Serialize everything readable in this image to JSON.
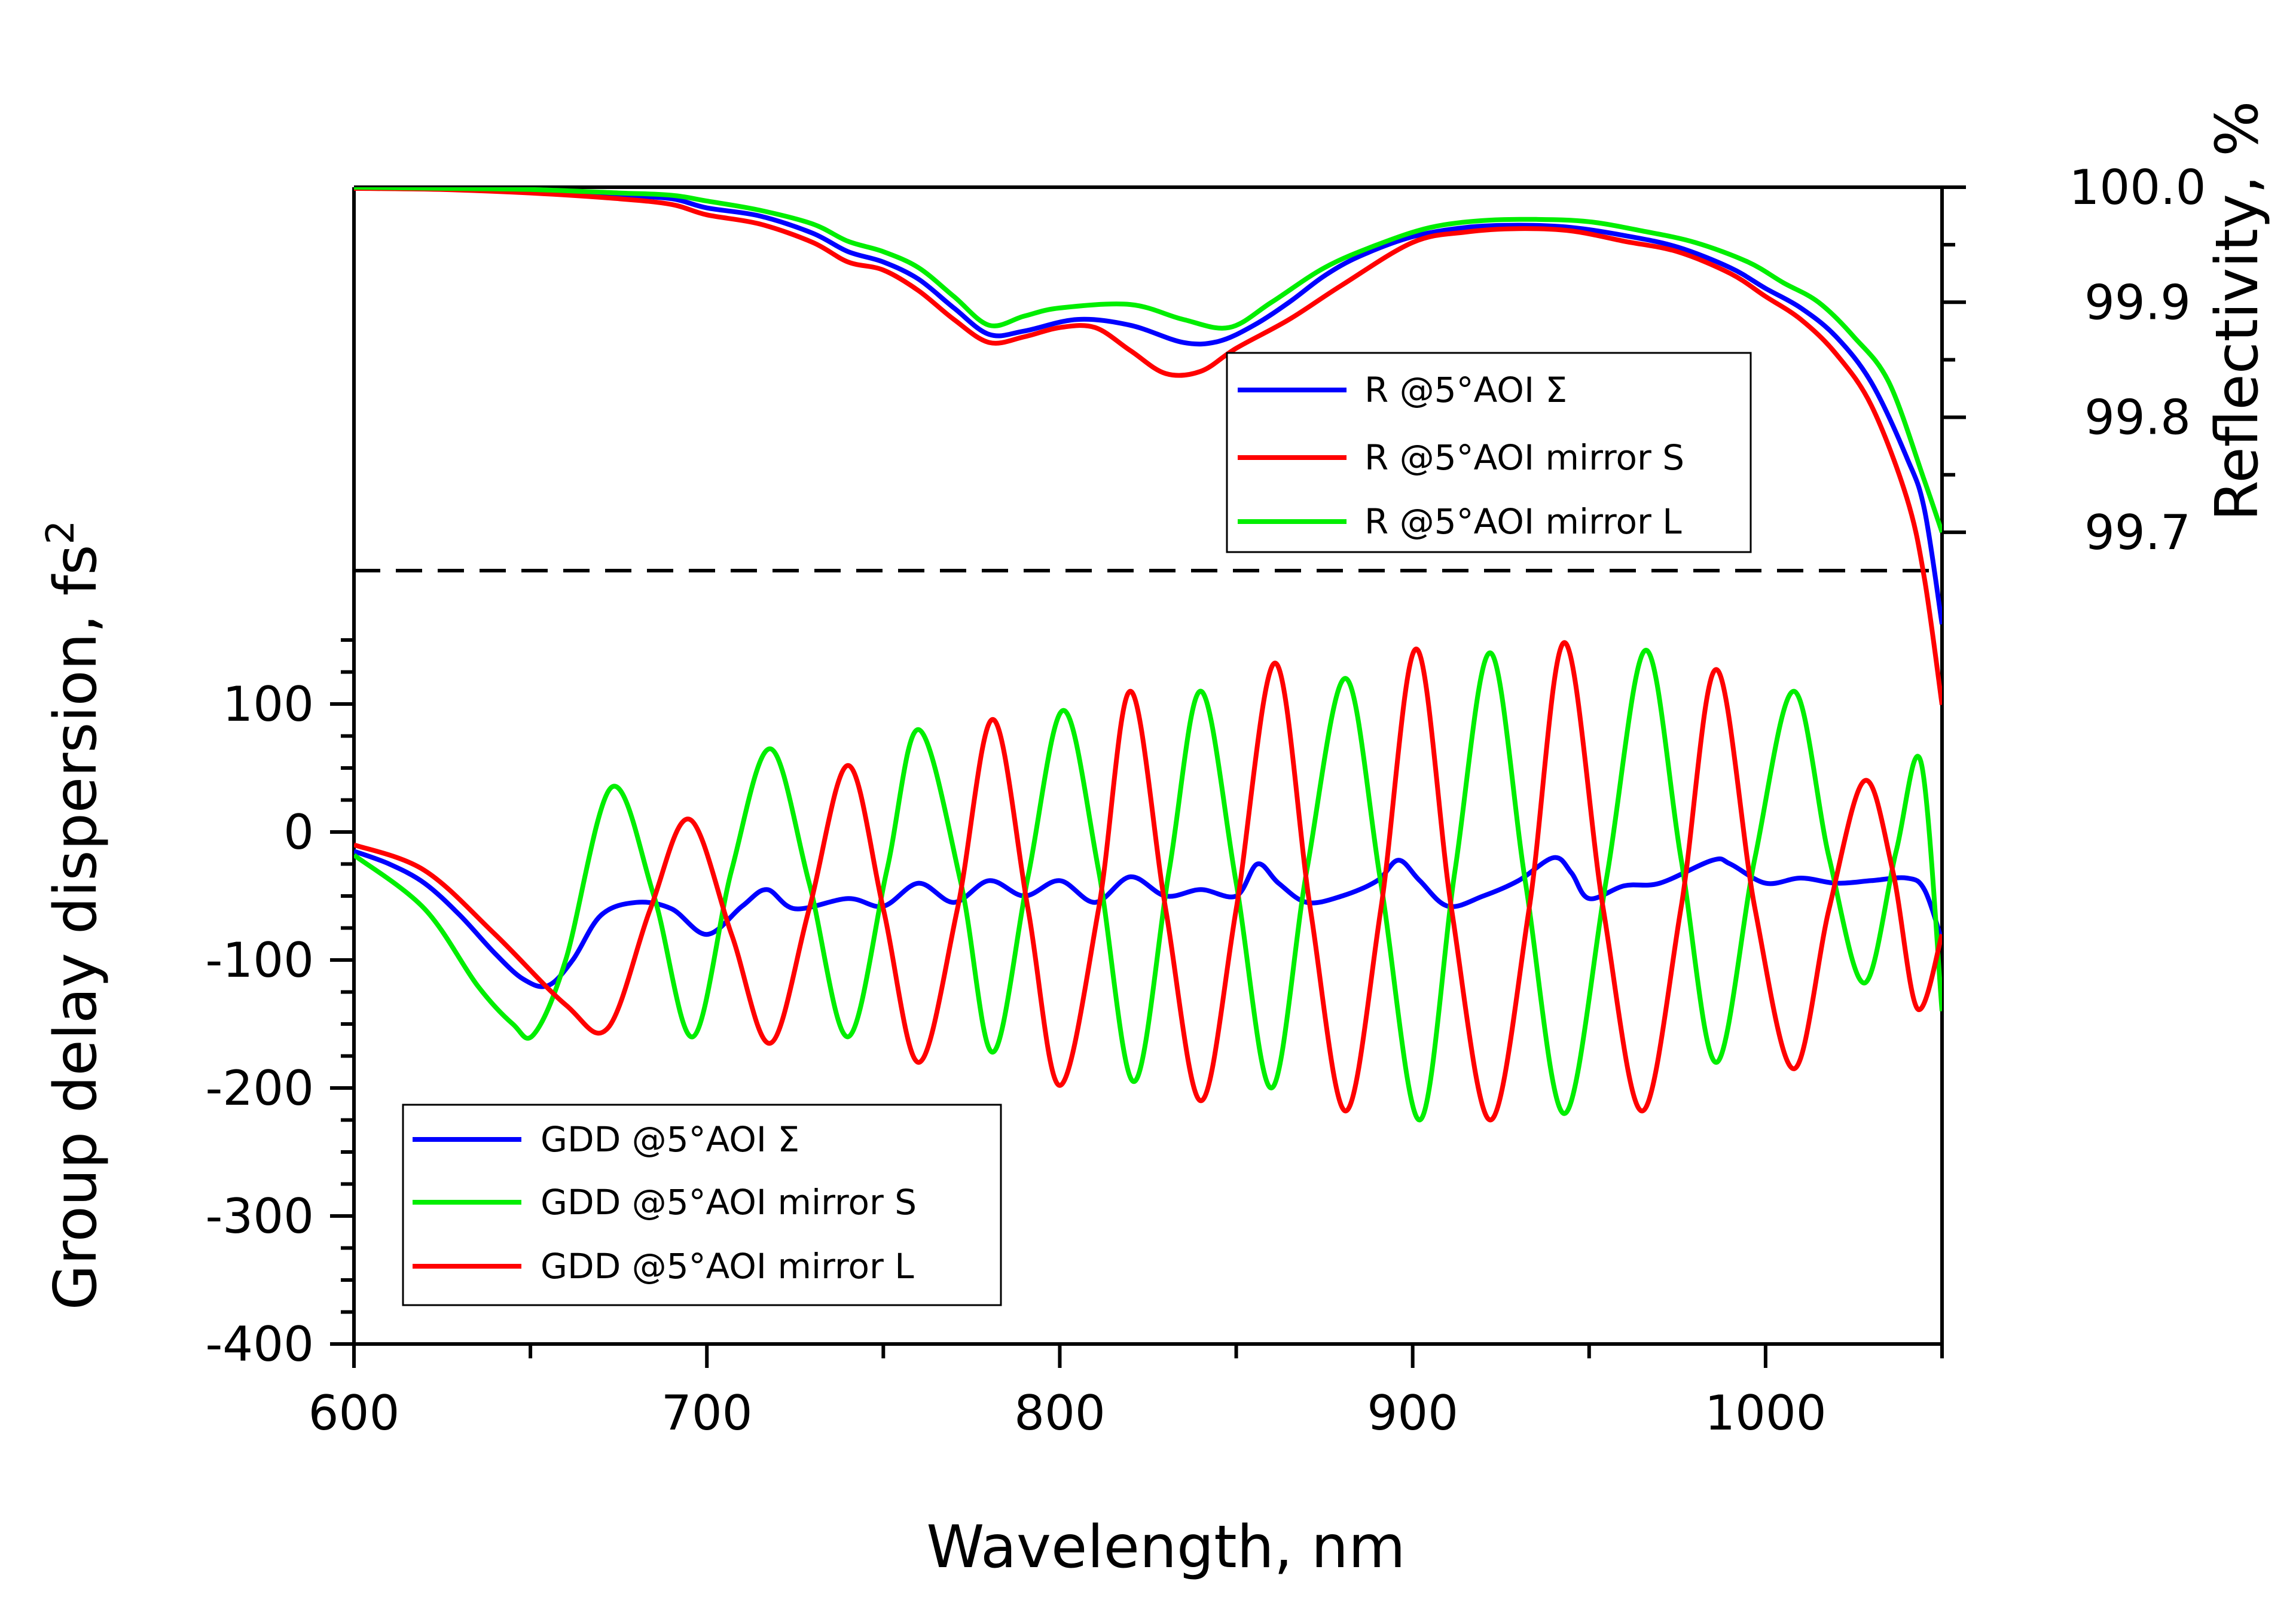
{
  "chart_data": {
    "type": "line",
    "xlabel": "Wavelength, nm",
    "xlim": [
      600,
      1050
    ],
    "x_ticks": [
      "600",
      "700",
      "800",
      "900",
      "1000"
    ],
    "left_axis": {
      "label": "Group delay dispersion, fs",
      "label_superscript": "2",
      "ylim": [
        -400,
        200
      ],
      "ticks": [
        "100",
        "0",
        "-100",
        "-200",
        "-300",
        "-400"
      ]
    },
    "right_axis": {
      "label": "Reflectivity, %",
      "ylim": [
        99.67,
        100.0
      ],
      "ticks": [
        "100.0",
        "99.9",
        "99.8",
        "99.7"
      ]
    },
    "separator": {
      "style": "dashed"
    },
    "reflectivity_legend": {
      "placement": "upper-right",
      "entries": [
        "R @5°AOI Σ",
        "R @5°AOI mirror S",
        "R @5°AOI mirror L"
      ]
    },
    "gdd_legend": {
      "placement": "lower-left",
      "entries": [
        "GDD @5°AOI Σ",
        "GDD @5°AOI mirror S",
        "GDD @5°AOI mirror L"
      ]
    },
    "reflectivity_series": [
      {
        "name": "R @5°AOI Σ",
        "color": "#0000ff",
        "x": [
          600,
          625,
          650,
          675,
          690,
          700,
          715,
          730,
          740,
          750,
          760,
          770,
          780,
          790,
          805,
          820,
          835,
          845,
          855,
          865,
          875,
          885,
          900,
          915,
          930,
          945,
          960,
          975,
          990,
          1000,
          1010,
          1020,
          1030,
          1040,
          1045,
          1050
        ],
        "y": [
          99.999,
          99.999,
          99.997,
          99.993,
          99.99,
          99.982,
          99.975,
          99.96,
          99.944,
          99.935,
          99.92,
          99.895,
          99.872,
          99.875,
          99.885,
          99.88,
          99.865,
          99.866,
          99.88,
          99.9,
          99.923,
          99.94,
          99.957,
          99.965,
          99.967,
          99.965,
          99.958,
          99.948,
          99.93,
          99.912,
          99.895,
          99.87,
          99.83,
          99.765,
          99.72,
          99.62
        ]
      },
      {
        "name": "R @5°AOI mirror S",
        "color": "#ff0000",
        "x": [
          600,
          625,
          650,
          675,
          690,
          700,
          715,
          730,
          740,
          750,
          760,
          770,
          780,
          790,
          800,
          810,
          820,
          830,
          840,
          850,
          865,
          880,
          900,
          915,
          930,
          945,
          960,
          975,
          990,
          1000,
          1010,
          1020,
          1030,
          1040,
          1045,
          1050
        ],
        "y": [
          99.999,
          99.998,
          99.995,
          99.99,
          99.985,
          99.976,
          99.968,
          99.952,
          99.935,
          99.928,
          99.91,
          99.885,
          99.865,
          99.87,
          99.878,
          99.878,
          99.858,
          99.838,
          99.84,
          99.86,
          99.885,
          99.915,
          99.952,
          99.961,
          99.964,
          99.962,
          99.953,
          99.944,
          99.925,
          99.905,
          99.885,
          99.855,
          99.81,
          99.73,
          99.66,
          99.55
        ]
      },
      {
        "name": "R @5°AOI mirror L",
        "color": "#00ee00",
        "x": [
          600,
          625,
          650,
          675,
          690,
          700,
          715,
          730,
          740,
          750,
          760,
          770,
          780,
          790,
          800,
          820,
          835,
          848,
          860,
          875,
          890,
          905,
          920,
          935,
          950,
          965,
          980,
          995,
          1005,
          1015,
          1025,
          1035,
          1045,
          1050
        ],
        "y": [
          100.0,
          99.999,
          99.998,
          99.995,
          99.993,
          99.988,
          99.98,
          99.968,
          99.953,
          99.944,
          99.93,
          99.905,
          99.88,
          99.888,
          99.895,
          99.898,
          99.885,
          99.878,
          99.9,
          99.93,
          99.95,
          99.965,
          99.971,
          99.972,
          99.97,
          99.962,
          99.952,
          99.935,
          99.917,
          99.9,
          99.87,
          99.83,
          99.745,
          99.7
        ]
      }
    ],
    "gdd_series": [
      {
        "name": "GDD @5°AOI Σ",
        "color": "#0000ff",
        "x": [
          600,
          610,
          620,
          630,
          640,
          648,
          655,
          662,
          670,
          680,
          690,
          700,
          710,
          717,
          725,
          740,
          750,
          760,
          770,
          780,
          790,
          800,
          810,
          820,
          830,
          840,
          850,
          856,
          862,
          870,
          880,
          890,
          896,
          902,
          910,
          920,
          930,
          940,
          945,
          950,
          960,
          970,
          985,
          990,
          1000,
          1010,
          1020,
          1030,
          1040,
          1045,
          1050
        ],
        "y": [
          -15,
          -25,
          -40,
          -65,
          -95,
          -115,
          -120,
          -100,
          -65,
          -55,
          -60,
          -80,
          -58,
          -45,
          -60,
          -52,
          -58,
          -40,
          -55,
          -38,
          -50,
          -38,
          -55,
          -35,
          -50,
          -45,
          -50,
          -25,
          -40,
          -55,
          -50,
          -38,
          -22,
          -38,
          -58,
          -50,
          -38,
          -20,
          -32,
          -52,
          -42,
          -40,
          -22,
          -25,
          -40,
          -36,
          -40,
          -38,
          -36,
          -45,
          -85
        ]
      },
      {
        "name": "GDD @5°AOI mirror S",
        "color": "#00ee00",
        "x": [
          600,
          620,
          635,
          645,
          651,
          660,
          673,
          685,
          696,
          707,
          718,
          729,
          740,
          751,
          760,
          772,
          781,
          791,
          801,
          811,
          821,
          831,
          840,
          850,
          860,
          870,
          881,
          891,
          902,
          912,
          922,
          932,
          943,
          955,
          966,
          976,
          986,
          997,
          1008,
          1018,
          1028,
          1037,
          1044,
          1050
        ],
        "y": [
          -18,
          -60,
          -120,
          -150,
          -158,
          -100,
          35,
          -50,
          -160,
          -30,
          65,
          -40,
          -160,
          -30,
          80,
          -40,
          -172,
          -35,
          95,
          -30,
          -195,
          -30,
          110,
          -40,
          -200,
          -30,
          120,
          -40,
          -225,
          -30,
          140,
          -40,
          -220,
          -35,
          142,
          -20,
          -180,
          -20,
          110,
          -20,
          -118,
          -15,
          55,
          -140
        ]
      },
      {
        "name": "GDD @5°AOI mirror L",
        "color": "#ff0000",
        "x": [
          600,
          620,
          640,
          660,
          672,
          684,
          695,
          707,
          718,
          729,
          740,
          750,
          760,
          771,
          781,
          791,
          800,
          811,
          820,
          830,
          840,
          850,
          861,
          871,
          881,
          891,
          901,
          911,
          922,
          933,
          943,
          954,
          965,
          976,
          986,
          997,
          1008,
          1018,
          1028,
          1036,
          1043,
          1050
        ],
        "y": [
          -10,
          -30,
          -80,
          -135,
          -153,
          -60,
          10,
          -80,
          -165,
          -60,
          52,
          -60,
          -180,
          -60,
          88,
          -60,
          -198,
          -60,
          110,
          -60,
          -210,
          -60,
          132,
          -60,
          -218,
          -60,
          143,
          -60,
          -225,
          -60,
          148,
          -60,
          -218,
          -60,
          127,
          -60,
          -185,
          -60,
          40,
          -30,
          -138,
          -80
        ]
      }
    ]
  }
}
